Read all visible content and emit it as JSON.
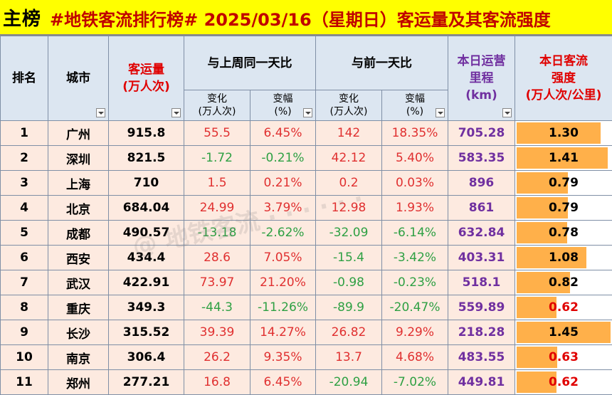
{
  "title": {
    "tag": "主榜",
    "text": "#地铁客流排行榜# 2025/03/16（星期日）客运量及其客流强度"
  },
  "headers": {
    "rank": "排名",
    "city": "城市",
    "volume_1": "客运量",
    "volume_2": "(万人次)",
    "week_group": "与上周同一天比",
    "day_group": "与前一天比",
    "change": "变化",
    "change_unit": "(万人次)",
    "ratio": "变幅",
    "ratio_unit": "(%)",
    "mileage_1": "本日运营",
    "mileage_2": "里程",
    "mileage_3": "(km)",
    "intensity_1": "本日客流",
    "intensity_2": "强度",
    "intensity_3": "(万人次/公里)"
  },
  "rows": [
    {
      "rank": "1",
      "city": "广州",
      "volume": "915.8",
      "w_change": "55.5",
      "w_ratio": "6.45%",
      "w_dir": "up",
      "d_change": "142",
      "d_ratio": "18.35%",
      "d_dir": "up",
      "mileage": "705.28",
      "intensity": "1.30",
      "intensity_value": 1.3,
      "intensity_low": false
    },
    {
      "rank": "2",
      "city": "深圳",
      "volume": "821.5",
      "w_change": "-1.72",
      "w_ratio": "-0.21%",
      "w_dir": "down",
      "d_change": "42.12",
      "d_ratio": "5.40%",
      "d_dir": "up",
      "mileage": "583.35",
      "intensity": "1.41",
      "intensity_value": 1.41,
      "intensity_low": false
    },
    {
      "rank": "3",
      "city": "上海",
      "volume": "710",
      "w_change": "1.5",
      "w_ratio": "0.21%",
      "w_dir": "up",
      "d_change": "0.2",
      "d_ratio": "0.03%",
      "d_dir": "up",
      "mileage": "896",
      "intensity": "0.79",
      "intensity_value": 0.79,
      "intensity_low": false
    },
    {
      "rank": "4",
      "city": "北京",
      "volume": "684.04",
      "w_change": "24.99",
      "w_ratio": "3.79%",
      "w_dir": "up",
      "d_change": "12.98",
      "d_ratio": "1.93%",
      "d_dir": "up",
      "mileage": "861",
      "intensity": "0.79",
      "intensity_value": 0.79,
      "intensity_low": false
    },
    {
      "rank": "5",
      "city": "成都",
      "volume": "490.57",
      "w_change": "-13.18",
      "w_ratio": "-2.62%",
      "w_dir": "down",
      "d_change": "-32.09",
      "d_ratio": "-6.14%",
      "d_dir": "down",
      "mileage": "632.84",
      "intensity": "0.78",
      "intensity_value": 0.78,
      "intensity_low": false
    },
    {
      "rank": "6",
      "city": "西安",
      "volume": "434.4",
      "w_change": "28.6",
      "w_ratio": "7.05%",
      "w_dir": "up",
      "d_change": "-15.4",
      "d_ratio": "-3.42%",
      "d_dir": "down",
      "mileage": "403.31",
      "intensity": "1.08",
      "intensity_value": 1.08,
      "intensity_low": false
    },
    {
      "rank": "7",
      "city": "武汉",
      "volume": "422.91",
      "w_change": "73.97",
      "w_ratio": "21.20%",
      "w_dir": "up",
      "d_change": "-0.98",
      "d_ratio": "-0.23%",
      "d_dir": "down",
      "mileage": "518.1",
      "intensity": "0.82",
      "intensity_value": 0.82,
      "intensity_low": false
    },
    {
      "rank": "8",
      "city": "重庆",
      "volume": "349.3",
      "w_change": "-44.3",
      "w_ratio": "-11.26%",
      "w_dir": "down",
      "d_change": "-89.9",
      "d_ratio": "-20.47%",
      "d_dir": "down",
      "mileage": "559.89",
      "intensity": "0.62",
      "intensity_value": 0.62,
      "intensity_low": true
    },
    {
      "rank": "9",
      "city": "长沙",
      "volume": "315.52",
      "w_change": "39.39",
      "w_ratio": "14.27%",
      "w_dir": "up",
      "d_change": "26.82",
      "d_ratio": "9.29%",
      "d_dir": "up",
      "mileage": "218.28",
      "intensity": "1.45",
      "intensity_value": 1.45,
      "intensity_low": false
    },
    {
      "rank": "10",
      "city": "南京",
      "volume": "306.4",
      "w_change": "26.2",
      "w_ratio": "9.35%",
      "w_dir": "up",
      "d_change": "13.7",
      "d_ratio": "4.68%",
      "d_dir": "up",
      "mileage": "483.55",
      "intensity": "0.63",
      "intensity_value": 0.63,
      "intensity_low": true
    },
    {
      "rank": "11",
      "city": "郑州",
      "volume": "277.21",
      "w_change": "16.8",
      "w_ratio": "6.45%",
      "w_dir": "up",
      "d_change": "-20.94",
      "d_ratio": "-7.02%",
      "d_dir": "down",
      "mileage": "449.81",
      "intensity": "0.62",
      "intensity_value": 0.62,
      "intensity_low": true
    }
  ],
  "intensity_scale_max": 1.45,
  "colors": {
    "title_bg": "#ffff00",
    "title_text": "#c00000",
    "header_bg": "#dce6f1",
    "row_bg": "#fdeae0",
    "up": "#e03030",
    "down": "#2ea043",
    "mileage": "#7030a0",
    "bar": "#ffb04a"
  }
}
